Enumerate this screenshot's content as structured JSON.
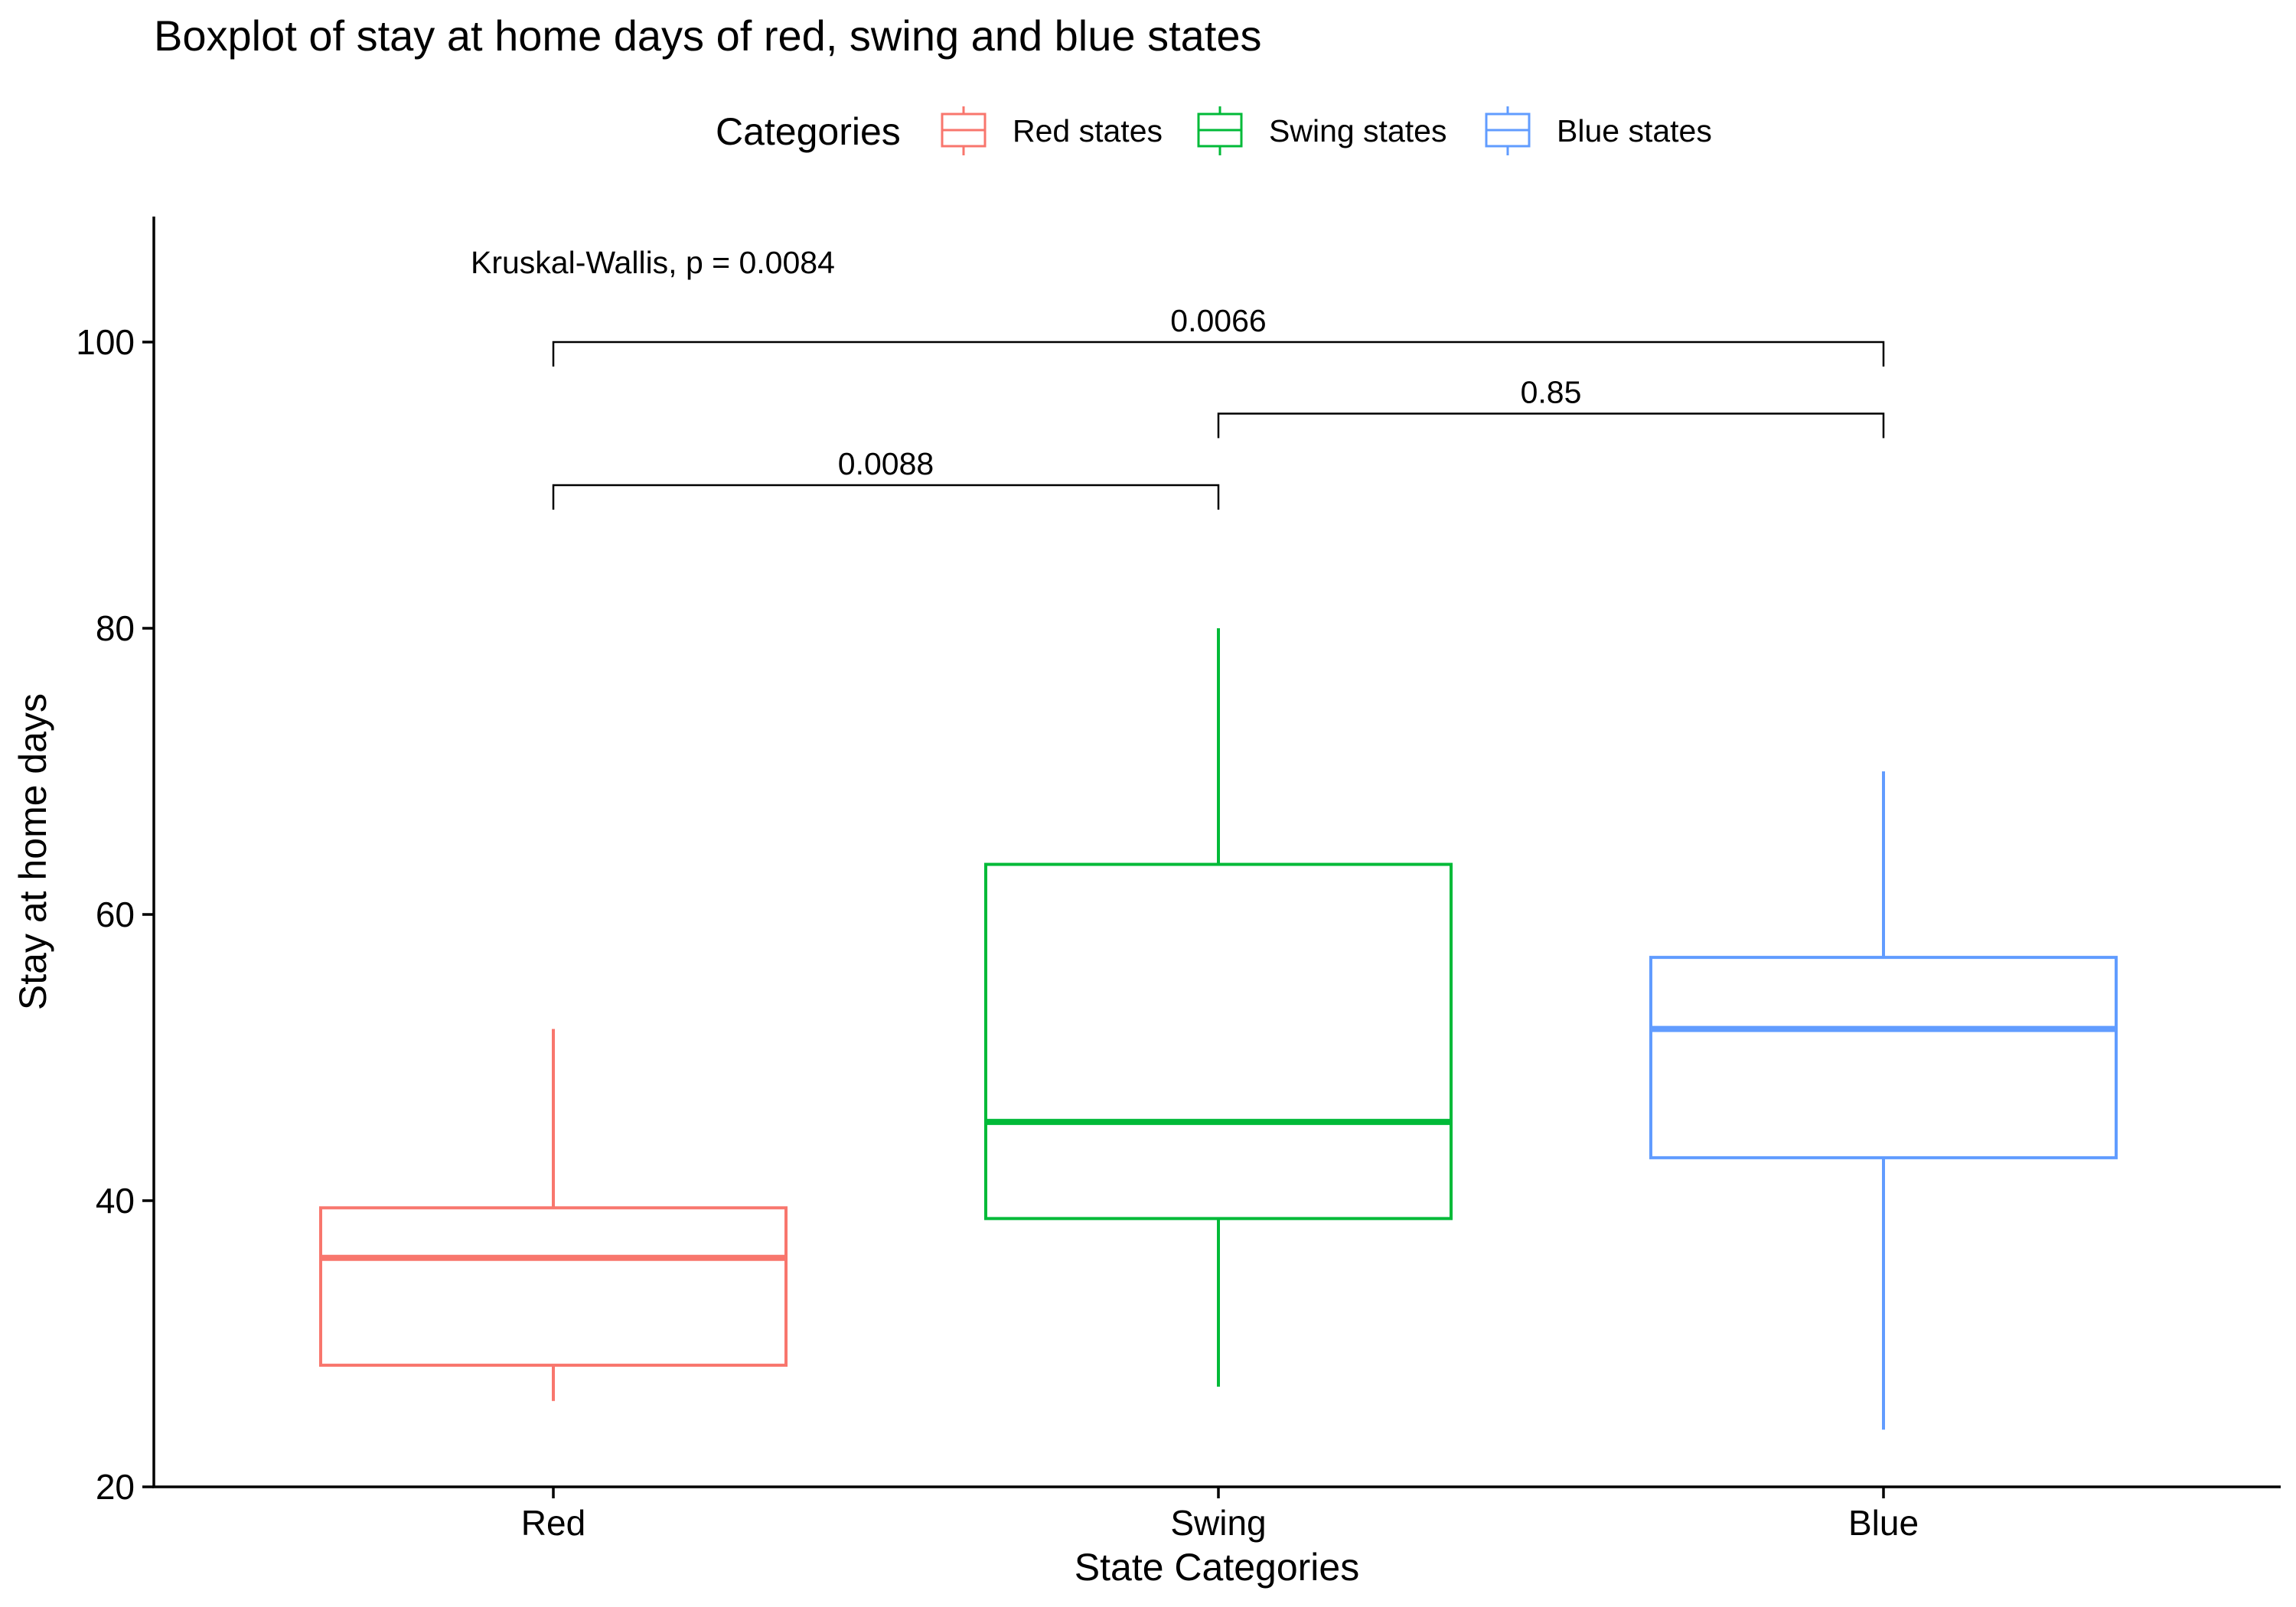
{
  "chart_data": {
    "type": "boxplot",
    "title": "Boxplot of stay at home days of red, swing and blue states",
    "xlabel": "State Categories",
    "ylabel": "Stay at home days",
    "ylim": [
      20,
      109
    ],
    "yticks": [
      20,
      40,
      60,
      80,
      100
    ],
    "grid": false,
    "legend": {
      "title": "Categories",
      "placement": "top-center",
      "entries": [
        "Red states",
        "Swing states",
        "Blue states"
      ]
    },
    "categories": [
      "Red",
      "Swing",
      "Blue"
    ],
    "colors": [
      "#F8766D",
      "#00BA38",
      "#619CFF"
    ],
    "series": [
      {
        "category": "Red",
        "legend": "Red states",
        "whisker_low": 26,
        "q1": 28.5,
        "median": 36,
        "q3": 39.5,
        "whisker_high": 52
      },
      {
        "category": "Swing",
        "legend": "Swing states",
        "whisker_low": 27,
        "q1": 38.75,
        "median": 45.5,
        "q3": 63.5,
        "whisker_high": 80
      },
      {
        "category": "Blue",
        "legend": "Blue states",
        "whisker_low": 24,
        "q1": 43,
        "median": 52,
        "q3": 57,
        "whisker_high": 70
      }
    ],
    "annotations": {
      "global_test": "Kruskal-Wallis, p = 0.0084",
      "comparisons": [
        {
          "from": "Red",
          "to": "Swing",
          "y": 90,
          "label": "0.0088"
        },
        {
          "from": "Swing",
          "to": "Blue",
          "y": 95,
          "label": "0.85"
        },
        {
          "from": "Red",
          "to": "Blue",
          "y": 100,
          "label": "0.0066"
        }
      ]
    }
  }
}
